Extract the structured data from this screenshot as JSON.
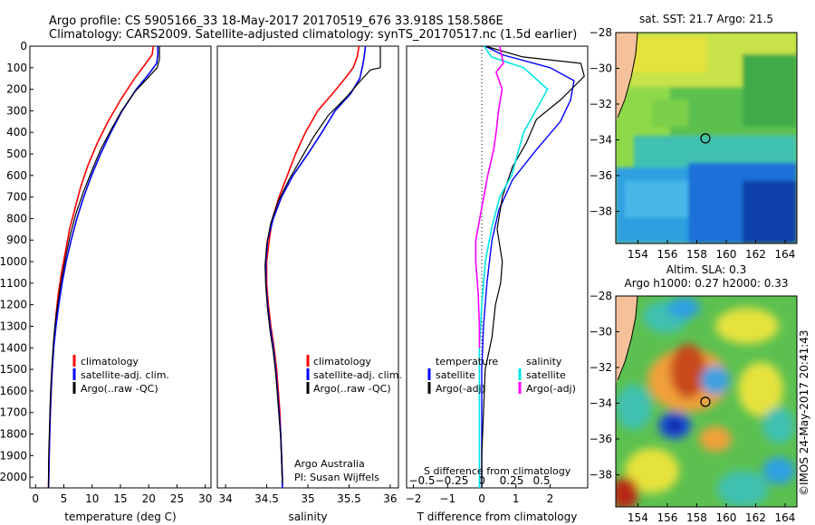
{
  "header": {
    "line1": "Argo profile: CS 5905166_33 18-May-2017 20170519_676 33.918S 158.586E",
    "line2": "Climatology: CARS2009. Satellite-adjusted climatology: synTS_20170517.nc (1.5d earlier)"
  },
  "colors": {
    "climatology": "#ff0000",
    "satellite_adj": "#0000ff",
    "argo": "#000000",
    "t_satellite": "#00e5e5",
    "s_argo_adj": "#ff00ff",
    "land": "#f5c19a",
    "coast": "#000000"
  },
  "chart_data": [
    {
      "id": "temperature",
      "type": "line",
      "xlabel": "temperature (deg C)",
      "xlim": [
        -1,
        31
      ],
      "xticks": [
        0,
        5,
        10,
        15,
        20,
        25,
        30
      ],
      "ylim": [
        0,
        2050
      ],
      "yticks": [
        0,
        100,
        200,
        300,
        400,
        500,
        600,
        700,
        800,
        900,
        1000,
        1100,
        1200,
        1300,
        1400,
        1500,
        1600,
        1700,
        1800,
        1900,
        2000
      ],
      "legend": [
        "climatology",
        "satellite-adj. clim.",
        "Argo(..raw -QC)"
      ],
      "series": [
        {
          "name": "climatology",
          "color": "#ff0000",
          "points": [
            [
              20.8,
              0
            ],
            [
              20.6,
              40
            ],
            [
              19.5,
              80
            ],
            [
              17.5,
              150
            ],
            [
              15.0,
              250
            ],
            [
              12.8,
              350
            ],
            [
              10.9,
              450
            ],
            [
              9.3,
              550
            ],
            [
              8.0,
              650
            ],
            [
              7.0,
              750
            ],
            [
              6.0,
              850
            ],
            [
              5.3,
              950
            ],
            [
              4.6,
              1050
            ],
            [
              4.0,
              1150
            ],
            [
              3.6,
              1250
            ],
            [
              3.3,
              1350
            ],
            [
              3.05,
              1450
            ],
            [
              2.85,
              1550
            ],
            [
              2.7,
              1650
            ],
            [
              2.55,
              1750
            ],
            [
              2.45,
              1850
            ],
            [
              2.35,
              1950
            ],
            [
              2.3,
              2050
            ]
          ]
        },
        {
          "name": "satellite-adj. clim.",
          "color": "#0000ff",
          "points": [
            [
              21.6,
              0
            ],
            [
              21.6,
              40
            ],
            [
              21.4,
              80
            ],
            [
              20.0,
              130
            ],
            [
              17.8,
              200
            ],
            [
              15.3,
              300
            ],
            [
              13.3,
              400
            ],
            [
              11.5,
              500
            ],
            [
              9.9,
              600
            ],
            [
              8.5,
              700
            ],
            [
              7.3,
              800
            ],
            [
              6.3,
              900
            ],
            [
              5.4,
              1000
            ],
            [
              4.7,
              1100
            ],
            [
              4.1,
              1200
            ],
            [
              3.6,
              1300
            ],
            [
              3.2,
              1400
            ],
            [
              2.95,
              1500
            ],
            [
              2.75,
              1600
            ],
            [
              2.6,
              1700
            ],
            [
              2.5,
              1800
            ],
            [
              2.4,
              1900
            ],
            [
              2.35,
              2000
            ],
            [
              2.3,
              2050
            ]
          ]
        },
        {
          "name": "Argo(..raw -QC)",
          "color": "#000000",
          "points": [
            [
              21.9,
              0
            ],
            [
              21.9,
              60
            ],
            [
              21.5,
              100
            ],
            [
              20.1,
              140
            ],
            [
              17.6,
              210
            ],
            [
              15.2,
              300
            ],
            [
              13.3,
              390
            ],
            [
              11.5,
              480
            ],
            [
              9.9,
              580
            ],
            [
              8.4,
              680
            ],
            [
              7.1,
              780
            ],
            [
              6.1,
              880
            ],
            [
              5.3,
              980
            ],
            [
              4.6,
              1080
            ],
            [
              4.0,
              1180
            ],
            [
              3.5,
              1280
            ],
            [
              3.15,
              1380
            ],
            [
              2.9,
              1480
            ],
            [
              2.7,
              1580
            ],
            [
              2.55,
              1680
            ],
            [
              2.45,
              1780
            ],
            [
              2.35,
              1880
            ],
            [
              2.3,
              1980
            ],
            [
              2.28,
              2050
            ]
          ]
        }
      ]
    },
    {
      "id": "salinity",
      "type": "line",
      "xlabel": "salinity",
      "xlim": [
        33.9,
        36.1
      ],
      "xticks": [
        34,
        34.5,
        35,
        35.5,
        36
      ],
      "ylim": [
        0,
        2050
      ],
      "yticks": [
        0,
        100,
        200,
        300,
        400,
        500,
        600,
        700,
        800,
        900,
        1000,
        1100,
        1200,
        1300,
        1400,
        1500,
        1600,
        1700,
        1800,
        1900,
        2000
      ],
      "legend": [
        "climatology",
        "satellite-adj. clim.",
        "Argo(..raw -QC)"
      ],
      "annotations": [
        "Argo Australia",
        "PI: Susan Wijffels"
      ],
      "series": [
        {
          "name": "climatology",
          "color": "#ff0000",
          "points": [
            [
              35.62,
              0
            ],
            [
              35.6,
              50
            ],
            [
              35.55,
              100
            ],
            [
              35.45,
              150
            ],
            [
              35.3,
              220
            ],
            [
              35.12,
              300
            ],
            [
              34.97,
              400
            ],
            [
              34.85,
              500
            ],
            [
              34.75,
              600
            ],
            [
              34.65,
              700
            ],
            [
              34.57,
              800
            ],
            [
              34.53,
              900
            ],
            [
              34.5,
              1000
            ],
            [
              34.5,
              1100
            ],
            [
              34.52,
              1200
            ],
            [
              34.55,
              1300
            ],
            [
              34.59,
              1400
            ],
            [
              34.62,
              1500
            ],
            [
              34.64,
              1600
            ],
            [
              34.66,
              1700
            ],
            [
              34.67,
              1800
            ],
            [
              34.68,
              1900
            ],
            [
              34.69,
              2000
            ],
            [
              34.69,
              2050
            ]
          ]
        },
        {
          "name": "satellite-adj. clim.",
          "color": "#0000ff",
          "points": [
            [
              35.7,
              0
            ],
            [
              35.68,
              60
            ],
            [
              35.66,
              100
            ],
            [
              35.63,
              150
            ],
            [
              35.52,
              220
            ],
            [
              35.33,
              300
            ],
            [
              35.17,
              400
            ],
            [
              35.0,
              500
            ],
            [
              34.82,
              600
            ],
            [
              34.68,
              700
            ],
            [
              34.58,
              800
            ],
            [
              34.51,
              900
            ],
            [
              34.49,
              1000
            ],
            [
              34.49,
              1100
            ],
            [
              34.51,
              1200
            ],
            [
              34.54,
              1300
            ],
            [
              34.58,
              1400
            ],
            [
              34.61,
              1500
            ],
            [
              34.63,
              1600
            ],
            [
              34.65,
              1700
            ],
            [
              34.67,
              1800
            ],
            [
              34.68,
              1900
            ],
            [
              34.69,
              2000
            ],
            [
              34.69,
              2050
            ]
          ]
        },
        {
          "name": "Argo(..raw -QC)",
          "color": "#000000",
          "points": [
            [
              35.88,
              0
            ],
            [
              35.88,
              100
            ],
            [
              35.76,
              110
            ],
            [
              35.64,
              160
            ],
            [
              35.46,
              240
            ],
            [
              35.25,
              320
            ],
            [
              35.07,
              420
            ],
            [
              34.92,
              520
            ],
            [
              34.77,
              620
            ],
            [
              34.64,
              720
            ],
            [
              34.55,
              820
            ],
            [
              34.5,
              920
            ],
            [
              34.48,
              1020
            ],
            [
              34.49,
              1120
            ],
            [
              34.51,
              1220
            ],
            [
              34.54,
              1320
            ],
            [
              34.58,
              1420
            ],
            [
              34.61,
              1520
            ],
            [
              34.63,
              1620
            ],
            [
              34.65,
              1720
            ],
            [
              34.67,
              1820
            ],
            [
              34.68,
              1920
            ],
            [
              34.69,
              2030
            ]
          ]
        }
      ]
    },
    {
      "id": "difference",
      "type": "line",
      "xlabel_bottom": "T difference from climatology",
      "xticks_bottom": [
        -2,
        -1,
        0,
        1,
        2
      ],
      "xlim": [
        -2.2,
        3.1
      ],
      "xlabel_top": "S difference from climatology",
      "xticks_top": [
        -0.5,
        -0.25,
        0,
        0.25,
        0.5
      ],
      "ylim": [
        0,
        2050
      ],
      "legend": {
        "temperature": "temperature",
        "temperature_items": [
          "satellite",
          "Argo(-adj)"
        ],
        "salinity": "salinity",
        "salinity_items": [
          "satellite",
          "Argo(-adj)"
        ]
      },
      "series": [
        {
          "name": "temperature satellite",
          "color": "#0000ff",
          "points": [
            [
              0.1,
              0
            ],
            [
              0.6,
              40
            ],
            [
              2.0,
              100
            ],
            [
              2.7,
              160
            ],
            [
              2.6,
              250
            ],
            [
              2.3,
              350
            ],
            [
              1.6,
              480
            ],
            [
              0.9,
              620
            ],
            [
              0.5,
              760
            ],
            [
              0.3,
              900
            ],
            [
              0.15,
              1100
            ],
            [
              0.05,
              1300
            ],
            [
              0.0,
              1500
            ],
            [
              0.0,
              1700
            ],
            [
              0.0,
              1900
            ],
            [
              0.0,
              2050
            ]
          ]
        },
        {
          "name": "temperature Argo(-adj)",
          "color": "#000000",
          "points": [
            [
              0.1,
              0
            ],
            [
              1.2,
              50
            ],
            [
              2.9,
              80
            ],
            [
              3.0,
              140
            ],
            [
              2.3,
              250
            ],
            [
              1.6,
              340
            ],
            [
              1.3,
              450
            ],
            [
              0.9,
              560
            ],
            [
              0.6,
              700
            ],
            [
              0.45,
              850
            ],
            [
              0.6,
              1000
            ],
            [
              0.55,
              1100
            ],
            [
              0.4,
              1200
            ],
            [
              0.3,
              1350
            ],
            [
              0.1,
              1500
            ],
            [
              0.05,
              1700
            ],
            [
              0.0,
              1900
            ],
            [
              0.0,
              2050
            ]
          ]
        },
        {
          "name": "salinity satellite",
          "color": "#00e5e5",
          "points": [
            [
              0.02,
              0
            ],
            [
              0.08,
              50
            ],
            [
              0.35,
              100
            ],
            [
              0.55,
              200
            ],
            [
              0.45,
              300
            ],
            [
              0.35,
              400
            ],
            [
              0.3,
              500
            ],
            [
              0.25,
              600
            ],
            [
              0.15,
              700
            ],
            [
              0.08,
              850
            ],
            [
              0.03,
              1000
            ],
            [
              0.0,
              1200
            ],
            [
              -0.02,
              1400
            ],
            [
              -0.02,
              1600
            ],
            [
              -0.02,
              1800
            ],
            [
              -0.02,
              2050
            ]
          ]
        },
        {
          "name": "salinity Argo(-adj)",
          "color": "#ff00ff",
          "points": [
            [
              0.15,
              0
            ],
            [
              0.18,
              80
            ],
            [
              0.12,
              120
            ],
            [
              0.17,
              200
            ],
            [
              0.14,
              300
            ],
            [
              0.12,
              400
            ],
            [
              0.1,
              480
            ],
            [
              0.05,
              600
            ],
            [
              0.0,
              750
            ],
            [
              -0.05,
              900
            ],
            [
              -0.05,
              1000
            ],
            [
              -0.03,
              1150
            ],
            [
              -0.02,
              1300
            ],
            [
              -0.02,
              1400
            ]
          ]
        }
      ]
    },
    {
      "id": "sst-map",
      "type": "heatmap",
      "title": "sat. SST: 21.7 Argo: 21.5",
      "xlim": [
        152.5,
        164.8
      ],
      "xticks": [
        154,
        156,
        158,
        160,
        162,
        164
      ],
      "ylim": [
        -39.8,
        -28
      ],
      "yticks": [
        -28,
        -30,
        -32,
        -34,
        -36,
        -38
      ],
      "argo_position": [
        158.586,
        -33.918
      ]
    },
    {
      "id": "sla-map",
      "type": "heatmap",
      "title_line1": "Altim. SLA: 0.3",
      "title_line2": "Argo h1000: 0.27 h2000: 0.33",
      "xlim": [
        152.5,
        164.8
      ],
      "xticks": [
        154,
        156,
        158,
        160,
        162,
        164
      ],
      "ylim": [
        -39.8,
        -28
      ],
      "yticks": [
        -28,
        -30,
        -32,
        -34,
        -36,
        -38
      ],
      "argo_position": [
        158.586,
        -33.918
      ]
    }
  ],
  "footer": {
    "credit": "©IMOS 24-May-2017 20:41:43"
  }
}
